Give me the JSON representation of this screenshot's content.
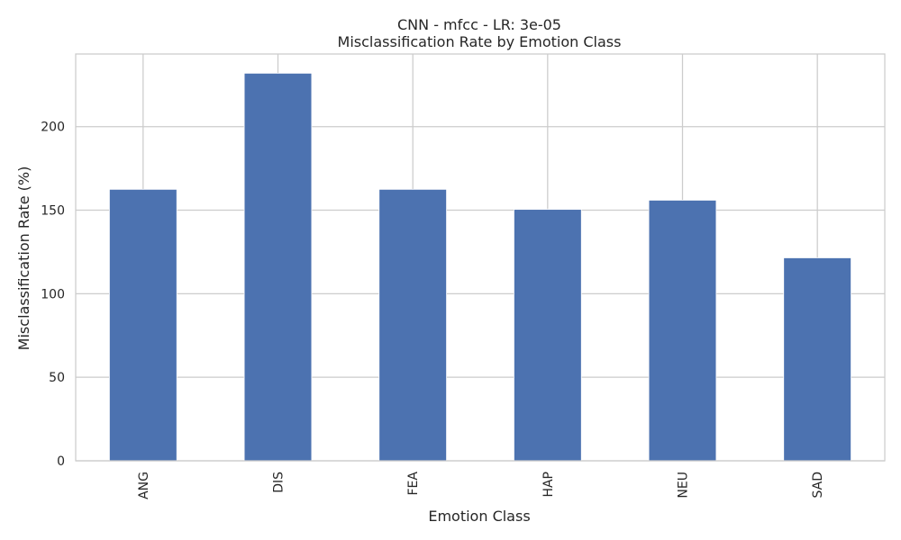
{
  "chart_data": {
    "type": "bar",
    "title_lines": [
      "CNN - mfcc - LR: 3e-05",
      "Misclassification Rate by Emotion Class"
    ],
    "xlabel": "Emotion Class",
    "ylabel": "Misclassification Rate (%)",
    "categories": [
      "ANG",
      "DIS",
      "FEA",
      "HAP",
      "NEU",
      "SAD"
    ],
    "values": [
      162.5,
      232,
      162.5,
      150.5,
      156,
      121.5
    ],
    "ylim": [
      0,
      243.5
    ],
    "yticks": [
      0,
      50,
      100,
      150,
      200
    ],
    "grid": true,
    "legend": "none",
    "bar_color": "#4c72b0",
    "grid_color": "#cccccc",
    "background": "#ffffff"
  }
}
